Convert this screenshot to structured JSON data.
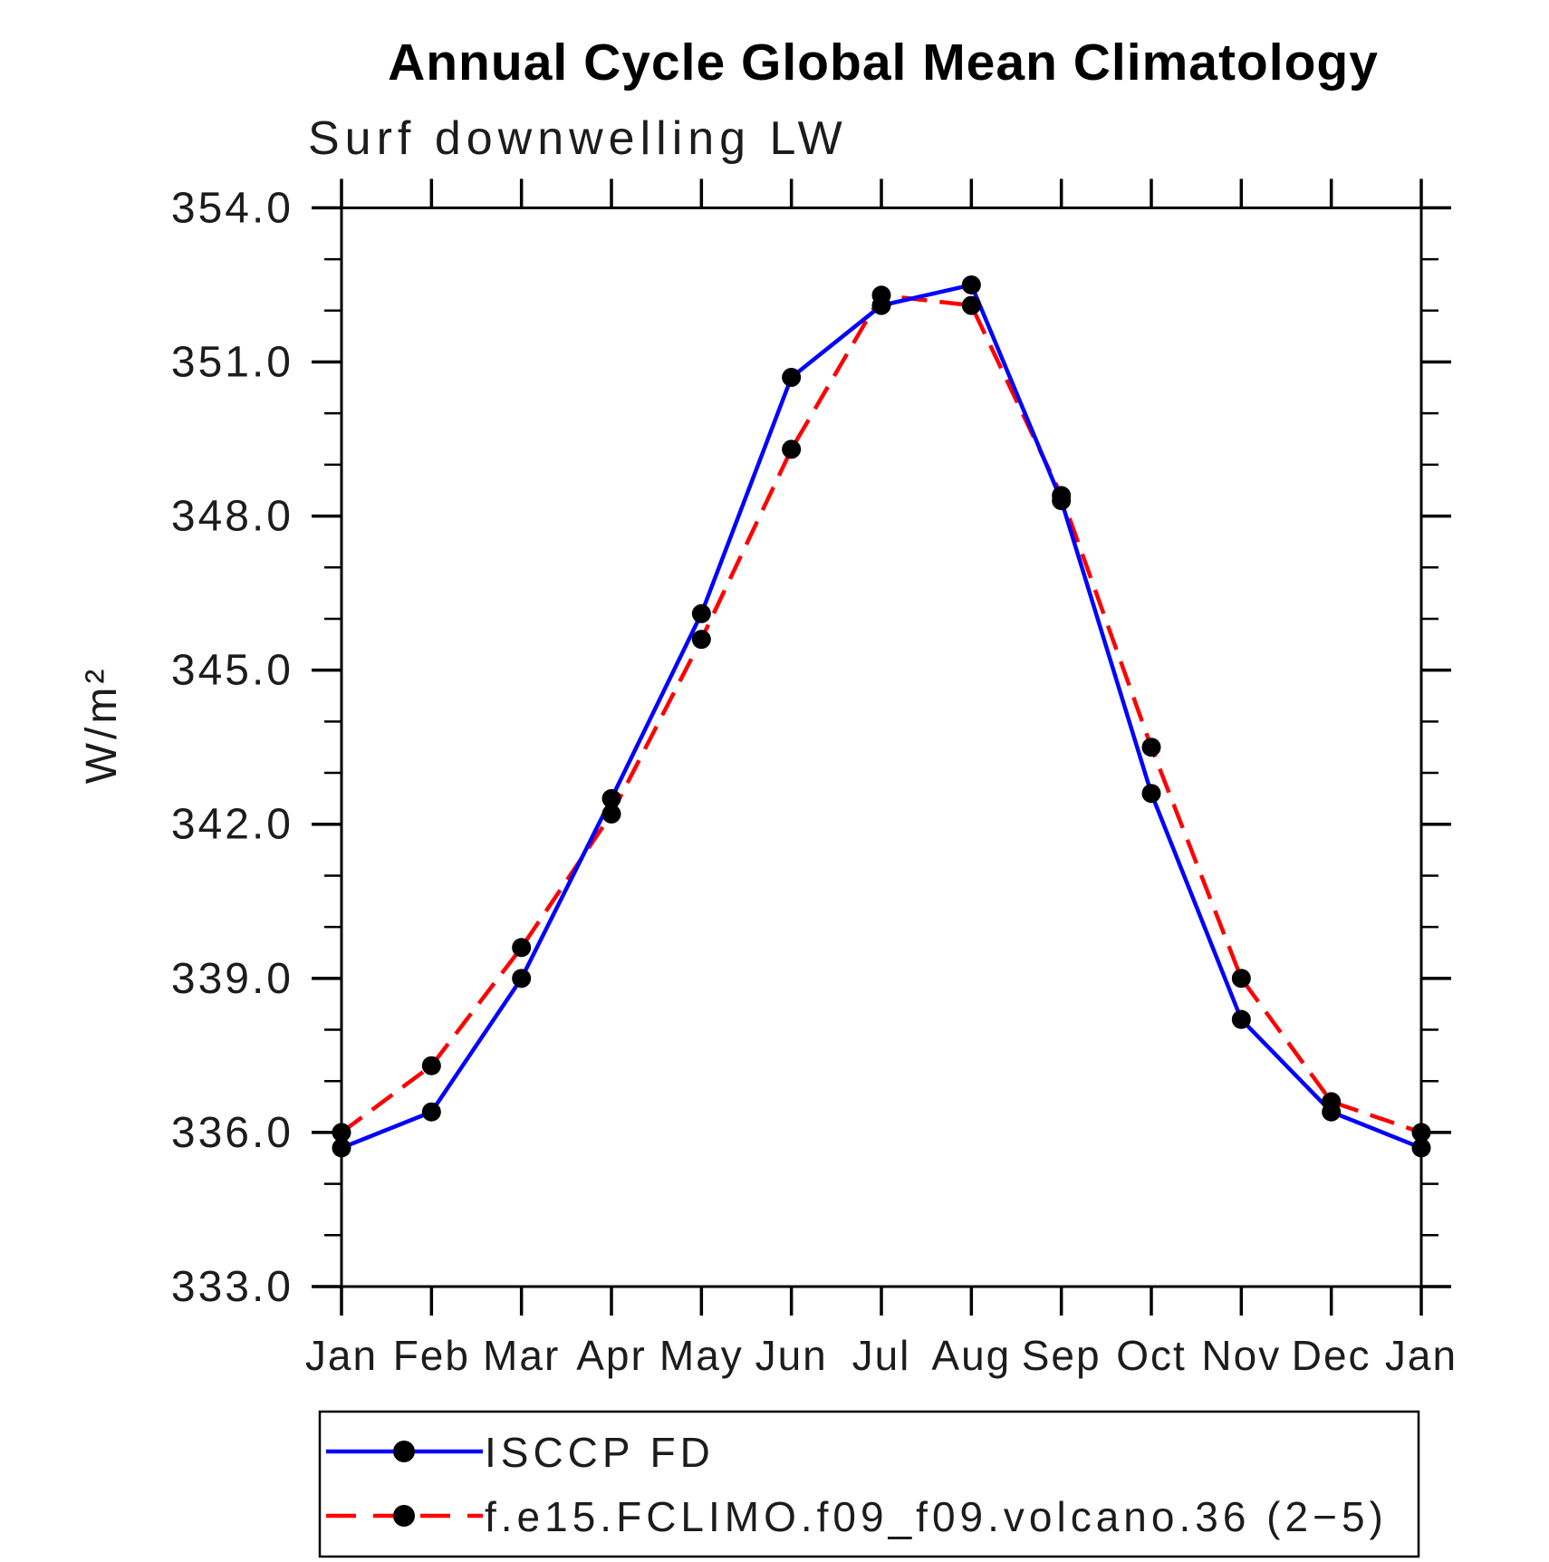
{
  "chart_data": {
    "type": "line",
    "title": "Annual Cycle Global Mean Climatology",
    "subtitle": "Surf downwelling LW",
    "ylabel": "W/m²",
    "xlabel": "",
    "categories": [
      "Jan",
      "Feb",
      "Mar",
      "Apr",
      "May",
      "Jun",
      "Jul",
      "Aug",
      "Sep",
      "Oct",
      "Nov",
      "Dec",
      "Jan"
    ],
    "series": [
      {
        "name": "ISCCP FD",
        "color": "#0000ff",
        "line_style": "solid",
        "marker": "filled-circle",
        "marker_color": "#000000",
        "values": [
          335.7,
          336.4,
          339.0,
          342.5,
          346.1,
          350.7,
          352.1,
          352.5,
          348.3,
          342.6,
          338.2,
          336.4,
          335.7
        ]
      },
      {
        "name": "f.e15.FCLIMO.f09_f09.volcano.36 (2−5)",
        "color": "#ff0000",
        "line_style": "dashed",
        "marker": "filled-circle",
        "marker_color": "#000000",
        "values": [
          336.0,
          337.3,
          339.6,
          342.2,
          345.6,
          349.3,
          352.3,
          352.1,
          348.4,
          343.5,
          339.0,
          336.6,
          336.0
        ]
      }
    ],
    "ylim": [
      333.0,
      354.0
    ],
    "ytick_major_step": 3.0,
    "ytick_minor_step": 1.0,
    "ytick_labels": [
      "333.0",
      "336.0",
      "339.0",
      "342.0",
      "345.0",
      "348.0",
      "351.0",
      "354.0"
    ],
    "grid": false,
    "legend_position": "bottom-left",
    "frame": "box-with-outward-ticks"
  }
}
